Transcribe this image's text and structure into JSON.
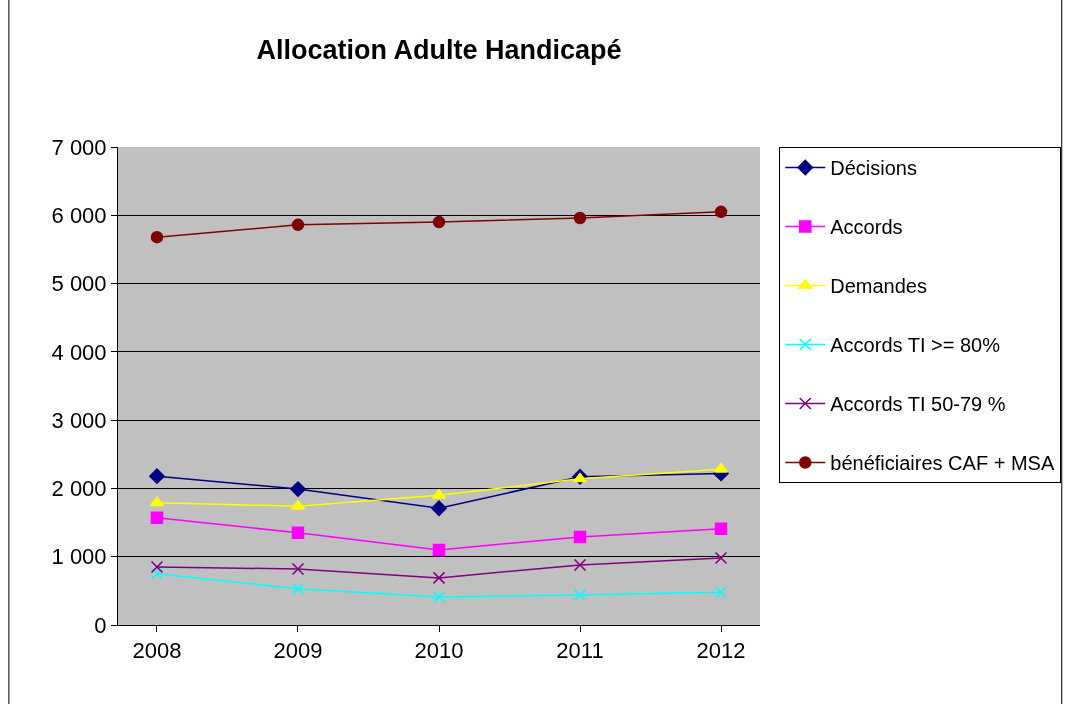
{
  "chart_data": {
    "type": "line",
    "title": "Allocation Adulte Handicapé",
    "categories": [
      "2008",
      "2009",
      "2010",
      "2011",
      "2012"
    ],
    "series": [
      {
        "name": "Décisions",
        "color": "#000080",
        "marker": "diamond",
        "values": [
          2180,
          1990,
          1710,
          2170,
          2220
        ]
      },
      {
        "name": "Accords",
        "color": "#ff00ff",
        "marker": "square",
        "values": [
          1570,
          1350,
          1100,
          1290,
          1410
        ]
      },
      {
        "name": "Demandes",
        "color": "#ffff00",
        "marker": "triangle",
        "values": [
          1790,
          1740,
          1900,
          2140,
          2280
        ]
      },
      {
        "name": "Accords TI >= 80%",
        "color": "#00ffff",
        "marker": "cross",
        "values": [
          750,
          530,
          410,
          440,
          480
        ]
      },
      {
        "name": "Accords TI 50-79 %",
        "color": "#800080",
        "marker": "cross",
        "values": [
          850,
          820,
          690,
          880,
          980
        ]
      },
      {
        "name": "bénéficiaires CAF + MSA",
        "color": "#800000",
        "marker": "circle",
        "values": [
          5680,
          5860,
          5900,
          5960,
          6050
        ]
      }
    ],
    "ylim": [
      0,
      7000
    ],
    "yticks": [
      0,
      {
        "value": 1000,
        "label": "1 000"
      },
      {
        "value": 2000,
        "label": "2 000"
      },
      {
        "value": 3000,
        "label": "3 000"
      },
      {
        "value": 4000,
        "label": "4 000"
      },
      {
        "value": 5000,
        "label": "5 000"
      },
      {
        "value": 6000,
        "label": "6 000"
      },
      {
        "value": 7000,
        "label": "7 000"
      }
    ],
    "grid": "y",
    "legend": "right"
  }
}
